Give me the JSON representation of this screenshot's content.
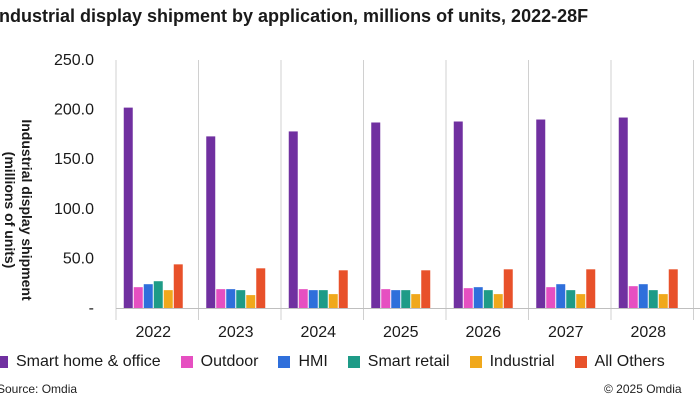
{
  "chart_data": {
    "type": "bar",
    "title": "Industrial display shipment by application, millions of units, 2022-28F",
    "ylabel_lines": [
      "Industrial display shipment",
      "(millions of units)"
    ],
    "categories": [
      "2022",
      "2023",
      "2024",
      "2025",
      "2026",
      "2027",
      "2028"
    ],
    "ylim": [
      0,
      250
    ],
    "yticks": [
      "-",
      "50.0",
      "100.0",
      "150.0",
      "200.0",
      "250.0"
    ],
    "grid": "vertical",
    "legend_position": "bottom",
    "series": [
      {
        "name": "Smart home & office",
        "color": "#7030a0",
        "values": [
          202,
          173,
          178,
          187,
          188,
          190,
          192
        ]
      },
      {
        "name": "Outdoor",
        "color": "#e64fc1",
        "values": [
          21,
          19,
          19,
          19,
          20,
          21,
          22
        ]
      },
      {
        "name": "HMI",
        "color": "#2f6fdb",
        "values": [
          24,
          19,
          18,
          18,
          21,
          24,
          24
        ]
      },
      {
        "name": "Smart retail",
        "color": "#1e9b87",
        "values": [
          27,
          18,
          18,
          18,
          18,
          18,
          18
        ]
      },
      {
        "name": "Industrial",
        "color": "#f0a81c",
        "values": [
          18,
          13,
          14,
          14,
          14,
          14,
          14
        ]
      },
      {
        "name": "All Others",
        "color": "#e8512a",
        "values": [
          44,
          40,
          38,
          38,
          39,
          39,
          39
        ]
      }
    ]
  },
  "legend_items": [
    "Smart home & office",
    "Outdoor",
    "HMI",
    "Smart retail",
    "Industrial",
    "All Others"
  ],
  "footer": {
    "source": "Source: Omdia",
    "copyright": "© 2025 Omdia"
  }
}
